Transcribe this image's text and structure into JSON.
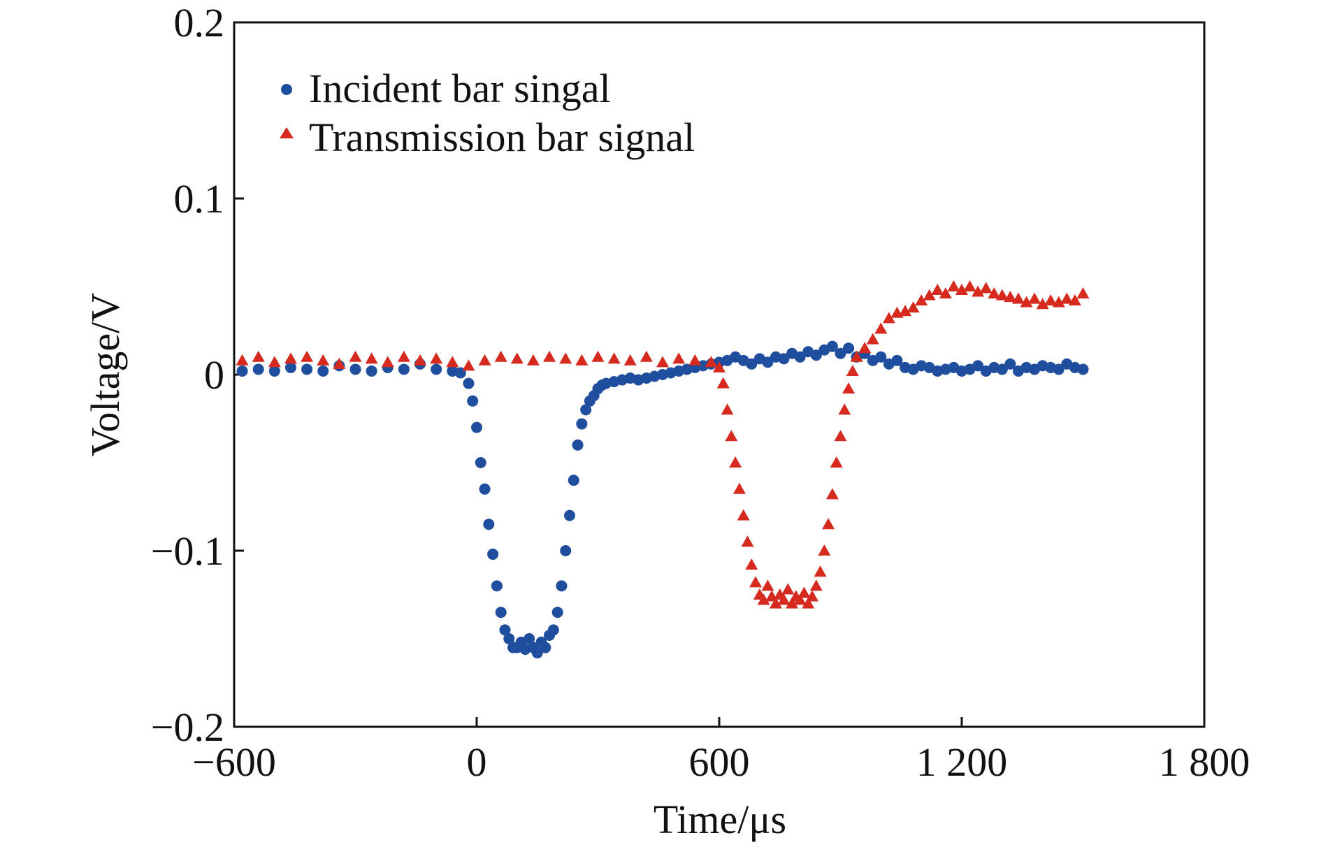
{
  "chart_data": {
    "type": "scatter",
    "xlabel": "Time/μs",
    "ylabel": "Voltage/V",
    "xlim": [
      -600,
      1800
    ],
    "ylim": [
      -0.2,
      0.2
    ],
    "x_ticks": [
      -600,
      0,
      600,
      1200,
      1800
    ],
    "x_tick_labels": [
      "−600",
      "0",
      "600",
      "1 200",
      "1 800"
    ],
    "y_ticks": [
      -0.2,
      -0.1,
      0,
      0.1,
      0.2
    ],
    "y_tick_labels": [
      "−0.2",
      "−0.1",
      "0",
      "0.1",
      "0.2"
    ],
    "grid": false,
    "legend_position": "top-left",
    "series": [
      {
        "name": "Incident bar singal",
        "marker": "circle",
        "color": "#1f4e9e",
        "x": [
          -580,
          -540,
          -500,
          -460,
          -420,
          -380,
          -340,
          -300,
          -260,
          -220,
          -180,
          -140,
          -100,
          -60,
          -40,
          -20,
          -10,
          0,
          10,
          20,
          30,
          40,
          50,
          60,
          70,
          80,
          90,
          100,
          110,
          120,
          130,
          140,
          150,
          160,
          170,
          180,
          190,
          200,
          210,
          220,
          230,
          240,
          250,
          260,
          270,
          280,
          290,
          300,
          310,
          320,
          340,
          360,
          380,
          400,
          420,
          440,
          460,
          480,
          500,
          520,
          540,
          560,
          580,
          600,
          620,
          640,
          660,
          680,
          700,
          720,
          740,
          760,
          780,
          800,
          820,
          840,
          860,
          880,
          900,
          920,
          940,
          960,
          980,
          1000,
          1020,
          1040,
          1060,
          1080,
          1100,
          1120,
          1140,
          1160,
          1180,
          1200,
          1220,
          1240,
          1260,
          1280,
          1300,
          1320,
          1340,
          1360,
          1380,
          1400,
          1420,
          1440,
          1460,
          1480,
          1500
        ],
        "y": [
          0.002,
          0.003,
          0.002,
          0.004,
          0.003,
          0.002,
          0.005,
          0.003,
          0.002,
          0.004,
          0.003,
          0.006,
          0.003,
          0.002,
          0.001,
          -0.005,
          -0.015,
          -0.03,
          -0.05,
          -0.065,
          -0.085,
          -0.102,
          -0.12,
          -0.135,
          -0.145,
          -0.15,
          -0.155,
          -0.155,
          -0.152,
          -0.156,
          -0.15,
          -0.155,
          -0.158,
          -0.152,
          -0.155,
          -0.148,
          -0.145,
          -0.135,
          -0.12,
          -0.1,
          -0.08,
          -0.06,
          -0.04,
          -0.028,
          -0.02,
          -0.015,
          -0.012,
          -0.008,
          -0.006,
          -0.005,
          -0.004,
          -0.003,
          -0.002,
          -0.003,
          -0.002,
          -0.001,
          0.0,
          0.001,
          0.002,
          0.003,
          0.004,
          0.005,
          0.006,
          0.007,
          0.008,
          0.01,
          0.008,
          0.006,
          0.009,
          0.007,
          0.01,
          0.009,
          0.012,
          0.01,
          0.013,
          0.011,
          0.014,
          0.016,
          0.012,
          0.015,
          0.01,
          0.012,
          0.008,
          0.01,
          0.006,
          0.008,
          0.004,
          0.003,
          0.005,
          0.004,
          0.002,
          0.003,
          0.004,
          0.002,
          0.003,
          0.005,
          0.002,
          0.004,
          0.003,
          0.006,
          0.002,
          0.004,
          0.003,
          0.005,
          0.004,
          0.003,
          0.006,
          0.004,
          0.003
        ]
      },
      {
        "name": "Transmission bar signal",
        "marker": "triangle",
        "color": "#d62a1f",
        "x": [
          -580,
          -540,
          -500,
          -460,
          -420,
          -380,
          -340,
          -300,
          -260,
          -220,
          -180,
          -140,
          -100,
          -60,
          -20,
          20,
          60,
          100,
          140,
          180,
          220,
          260,
          300,
          340,
          380,
          420,
          460,
          500,
          540,
          580,
          600,
          610,
          620,
          630,
          640,
          650,
          660,
          670,
          680,
          690,
          700,
          710,
          720,
          730,
          740,
          750,
          760,
          770,
          780,
          790,
          800,
          810,
          820,
          830,
          840,
          850,
          860,
          870,
          880,
          890,
          900,
          910,
          920,
          930,
          940,
          960,
          980,
          1000,
          1020,
          1040,
          1060,
          1080,
          1100,
          1120,
          1140,
          1160,
          1180,
          1200,
          1220,
          1240,
          1260,
          1280,
          1300,
          1320,
          1340,
          1360,
          1380,
          1400,
          1420,
          1440,
          1460,
          1480,
          1500
        ],
        "y": [
          0.008,
          0.01,
          0.007,
          0.009,
          0.01,
          0.008,
          0.006,
          0.01,
          0.009,
          0.007,
          0.01,
          0.008,
          0.009,
          0.007,
          0.005,
          0.008,
          0.01,
          0.009,
          0.008,
          0.01,
          0.009,
          0.008,
          0.01,
          0.009,
          0.008,
          0.01,
          0.007,
          0.009,
          0.008,
          0.007,
          0.004,
          -0.005,
          -0.02,
          -0.035,
          -0.05,
          -0.065,
          -0.08,
          -0.095,
          -0.108,
          -0.118,
          -0.125,
          -0.128,
          -0.12,
          -0.126,
          -0.13,
          -0.125,
          -0.128,
          -0.122,
          -0.13,
          -0.126,
          -0.128,
          -0.124,
          -0.13,
          -0.126,
          -0.12,
          -0.112,
          -0.1,
          -0.085,
          -0.068,
          -0.05,
          -0.035,
          -0.02,
          -0.008,
          0.002,
          0.01,
          0.015,
          0.02,
          0.026,
          0.032,
          0.035,
          0.036,
          0.038,
          0.042,
          0.045,
          0.048,
          0.046,
          0.05,
          0.048,
          0.05,
          0.047,
          0.049,
          0.046,
          0.045,
          0.044,
          0.043,
          0.041,
          0.043,
          0.04,
          0.042,
          0.041,
          0.043,
          0.042,
          0.046
        ]
      }
    ]
  }
}
